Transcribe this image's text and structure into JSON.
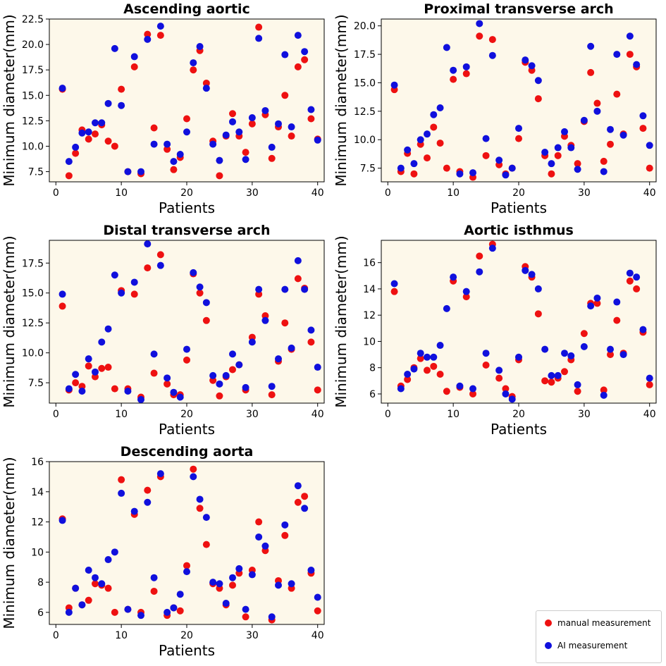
{
  "legend": {
    "items": [
      {
        "label": "manual measurement",
        "color": "#ee1111"
      },
      {
        "label": "AI measurement",
        "color": "#1010dd"
      }
    ]
  },
  "chart_data": [
    {
      "type": "scatter",
      "title": "Ascending aortic",
      "xlabel": "Patients",
      "ylabel": "Minimum diameter(mm)",
      "xlim": [
        -1,
        41
      ],
      "ylim": [
        6.5,
        22.5
      ],
      "xticks": [
        0,
        10,
        20,
        30,
        40
      ],
      "yticks": [
        7.5,
        10.0,
        12.5,
        15.0,
        17.5,
        20.0,
        22.5
      ],
      "ytick_labels": [
        "7.5",
        "10.0",
        "12.5",
        "15.0",
        "17.5",
        "20.0",
        "22.5"
      ],
      "x": [
        1,
        2,
        3,
        4,
        5,
        6,
        7,
        8,
        9,
        10,
        11,
        12,
        13,
        14,
        15,
        16,
        17,
        18,
        19,
        20,
        21,
        22,
        23,
        24,
        25,
        26,
        27,
        28,
        29,
        30,
        31,
        32,
        33,
        34,
        35,
        36,
        37,
        38,
        39,
        40
      ],
      "series": [
        {
          "name": "manual measurement",
          "values": [
            15.6,
            7.1,
            9.3,
            11.6,
            10.7,
            11.2,
            12.1,
            10.5,
            10.0,
            15.6,
            7.5,
            17.8,
            7.3,
            21.0,
            11.8,
            20.9,
            9.7,
            7.7,
            8.9,
            12.7,
            17.5,
            19.4,
            16.2,
            10.5,
            7.1,
            11.0,
            13.2,
            11.0,
            9.4,
            12.2,
            21.7,
            13.1,
            8.8,
            11.9,
            15.0,
            11.0,
            17.8,
            18.5,
            12.7,
            10.7
          ]
        },
        {
          "name": "AI measurement",
          "values": [
            15.7,
            8.5,
            9.9,
            11.3,
            11.4,
            12.3,
            12.3,
            14.2,
            19.6,
            14.0,
            7.5,
            18.8,
            7.5,
            20.5,
            10.2,
            21.8,
            10.2,
            8.5,
            9.2,
            11.4,
            18.2,
            19.8,
            15.7,
            10.2,
            8.6,
            11.1,
            12.4,
            11.4,
            8.7,
            12.8,
            20.6,
            13.5,
            9.9,
            12.2,
            19.0,
            11.9,
            20.9,
            19.3,
            13.6,
            10.6
          ]
        }
      ]
    },
    {
      "type": "scatter",
      "title": "Proximal transverse arch",
      "xlabel": "Patients",
      "ylabel": "Minimum diameter(mm)",
      "xlim": [
        -1,
        41
      ],
      "ylim": [
        6.3,
        20.6
      ],
      "xticks": [
        0,
        10,
        20,
        30,
        40
      ],
      "yticks": [
        7.5,
        10.0,
        12.5,
        15.0,
        17.5,
        20.0
      ],
      "ytick_labels": [
        "7.5",
        "10.0",
        "12.5",
        "15.0",
        "17.5",
        "20.0"
      ],
      "x": [
        1,
        2,
        3,
        4,
        5,
        6,
        7,
        8,
        9,
        10,
        11,
        12,
        13,
        14,
        15,
        16,
        17,
        18,
        19,
        20,
        21,
        22,
        23,
        24,
        25,
        26,
        27,
        28,
        29,
        30,
        31,
        32,
        33,
        34,
        35,
        36,
        37,
        38,
        39,
        40
      ],
      "series": [
        {
          "name": "manual measurement",
          "values": [
            14.4,
            7.2,
            8.8,
            7.0,
            9.6,
            8.4,
            11.1,
            9.7,
            7.5,
            15.3,
            7.2,
            15.8,
            6.7,
            19.1,
            8.6,
            18.8,
            7.8,
            7.0,
            7.5,
            10.1,
            16.8,
            16.1,
            13.6,
            8.6,
            7.0,
            8.6,
            10.3,
            9.5,
            7.9,
            11.6,
            15.9,
            13.2,
            8.1,
            9.6,
            14.0,
            10.5,
            17.5,
            16.4,
            11.0,
            7.5
          ]
        },
        {
          "name": "AI measurement",
          "values": [
            14.8,
            7.5,
            9.1,
            7.9,
            10.0,
            10.5,
            12.2,
            12.8,
            18.1,
            16.1,
            7.0,
            16.4,
            7.1,
            20.2,
            10.1,
            17.4,
            8.2,
            6.9,
            7.5,
            11.0,
            17.0,
            16.5,
            15.2,
            8.9,
            7.9,
            9.3,
            10.7,
            9.3,
            7.4,
            11.7,
            18.2,
            12.5,
            7.2,
            10.9,
            17.5,
            10.4,
            19.1,
            16.6,
            12.1,
            9.5
          ]
        }
      ]
    },
    {
      "type": "scatter",
      "title": "Distal transverse arch",
      "xlabel": "Patients",
      "ylabel": "Minimum diameter(mm)",
      "xlim": [
        -1,
        41
      ],
      "ylim": [
        5.8,
        19.4
      ],
      "xticks": [
        0,
        10,
        20,
        30,
        40
      ],
      "yticks": [
        7.5,
        10.0,
        12.5,
        15.0,
        17.5
      ],
      "ytick_labels": [
        "7.5",
        "10.0",
        "12.5",
        "15.0",
        "17.5"
      ],
      "x": [
        1,
        2,
        3,
        4,
        5,
        6,
        7,
        8,
        9,
        10,
        11,
        12,
        13,
        14,
        15,
        16,
        17,
        18,
        19,
        20,
        21,
        22,
        23,
        24,
        25,
        26,
        27,
        28,
        29,
        30,
        31,
        32,
        33,
        34,
        35,
        36,
        37,
        38,
        39,
        40
      ],
      "series": [
        {
          "name": "manual measurement",
          "values": [
            13.9,
            6.9,
            7.5,
            7.2,
            8.9,
            8.0,
            8.7,
            8.8,
            7.0,
            15.2,
            7.0,
            14.9,
            6.3,
            17.1,
            8.3,
            18.2,
            7.4,
            6.5,
            6.5,
            9.4,
            16.6,
            15.0,
            12.7,
            7.7,
            6.4,
            8.0,
            8.6,
            9.0,
            6.9,
            11.3,
            14.9,
            13.1,
            6.5,
            9.3,
            12.5,
            10.3,
            16.2,
            15.4,
            10.9,
            6.9
          ]
        },
        {
          "name": "AI measurement",
          "values": [
            14.9,
            7.0,
            8.2,
            6.8,
            9.5,
            8.4,
            10.9,
            12.0,
            16.5,
            15.0,
            6.8,
            15.9,
            6.1,
            19.1,
            9.9,
            17.3,
            7.9,
            6.7,
            6.3,
            10.3,
            16.7,
            15.5,
            14.2,
            8.1,
            7.4,
            8.1,
            9.9,
            9.0,
            7.1,
            10.9,
            15.3,
            12.7,
            7.2,
            9.5,
            15.3,
            10.4,
            17.7,
            15.3,
            11.9,
            8.8
          ]
        }
      ]
    },
    {
      "type": "scatter",
      "title": "Aortic isthmus",
      "xlabel": "Patients",
      "ylabel": "Minimum diameter(mm)",
      "xlim": [
        -1,
        41
      ],
      "ylim": [
        5.3,
        17.7
      ],
      "xticks": [
        0,
        10,
        20,
        30,
        40
      ],
      "yticks": [
        6,
        8,
        10,
        12,
        14,
        16
      ],
      "ytick_labels": [
        "6",
        "8",
        "10",
        "12",
        "14",
        "16"
      ],
      "x": [
        1,
        2,
        3,
        4,
        5,
        6,
        7,
        8,
        9,
        10,
        11,
        12,
        13,
        14,
        15,
        16,
        17,
        18,
        19,
        20,
        21,
        22,
        23,
        24,
        25,
        26,
        27,
        28,
        29,
        30,
        31,
        32,
        33,
        34,
        35,
        36,
        37,
        38,
        39,
        40
      ],
      "series": [
        {
          "name": "manual measurement",
          "values": [
            13.8,
            6.6,
            7.1,
            8.0,
            8.7,
            7.8,
            8.1,
            7.5,
            6.2,
            14.6,
            6.5,
            13.4,
            6.0,
            16.5,
            8.2,
            17.4,
            7.2,
            6.4,
            5.8,
            8.6,
            15.7,
            14.9,
            12.1,
            7.0,
            6.9,
            7.2,
            7.7,
            8.6,
            6.2,
            10.6,
            12.9,
            12.9,
            6.3,
            9.0,
            11.6,
            9.1,
            14.6,
            14.0,
            10.7,
            6.7
          ]
        },
        {
          "name": "AI measurement",
          "values": [
            14.4,
            6.4,
            7.5,
            7.9,
            9.1,
            8.8,
            8.8,
            9.7,
            12.5,
            14.9,
            6.6,
            13.8,
            6.4,
            15.3,
            9.1,
            17.1,
            7.8,
            6.0,
            5.6,
            8.8,
            15.4,
            15.1,
            14.0,
            9.4,
            7.4,
            7.4,
            9.1,
            8.9,
            6.7,
            9.6,
            12.7,
            13.3,
            5.9,
            9.4,
            13.0,
            9.0,
            15.2,
            14.9,
            10.9,
            7.2
          ]
        }
      ]
    },
    {
      "type": "scatter",
      "title": "Descending aorta",
      "xlabel": "Patients",
      "ylabel": "Minimum diameter(mm)",
      "xlim": [
        -1,
        41
      ],
      "ylim": [
        5.2,
        16.0
      ],
      "xticks": [
        0,
        10,
        20,
        30,
        40
      ],
      "yticks": [
        6,
        8,
        10,
        12,
        14,
        16
      ],
      "ytick_labels": [
        "6",
        "8",
        "10",
        "12",
        "14",
        "16"
      ],
      "x": [
        1,
        2,
        3,
        4,
        5,
        6,
        7,
        8,
        9,
        10,
        11,
        12,
        13,
        14,
        15,
        16,
        17,
        18,
        19,
        20,
        21,
        22,
        23,
        24,
        25,
        26,
        27,
        28,
        29,
        30,
        31,
        32,
        33,
        34,
        35,
        36,
        37,
        38,
        39,
        40
      ],
      "series": [
        {
          "name": "manual measurement",
          "values": [
            12.2,
            6.3,
            7.6,
            6.5,
            6.8,
            7.9,
            7.8,
            7.6,
            6.0,
            14.8,
            6.2,
            12.5,
            6.0,
            14.1,
            7.4,
            15.0,
            5.8,
            6.3,
            6.1,
            9.1,
            15.5,
            12.9,
            10.5,
            7.9,
            7.6,
            6.5,
            7.8,
            8.6,
            5.7,
            8.8,
            12.0,
            10.1,
            5.5,
            8.1,
            11.1,
            7.6,
            13.3,
            13.7,
            8.6,
            6.1
          ]
        },
        {
          "name": "AI measurement",
          "values": [
            12.1,
            6.0,
            7.6,
            6.5,
            8.8,
            8.3,
            7.9,
            9.5,
            10.0,
            13.9,
            6.2,
            12.7,
            5.8,
            13.3,
            8.3,
            15.2,
            6.0,
            6.3,
            7.2,
            8.7,
            15.0,
            13.5,
            12.3,
            8.0,
            7.9,
            6.6,
            8.3,
            8.9,
            6.2,
            8.5,
            11.0,
            10.4,
            5.7,
            7.8,
            11.8,
            7.9,
            14.4,
            12.9,
            8.8,
            7.0
          ]
        }
      ]
    }
  ]
}
